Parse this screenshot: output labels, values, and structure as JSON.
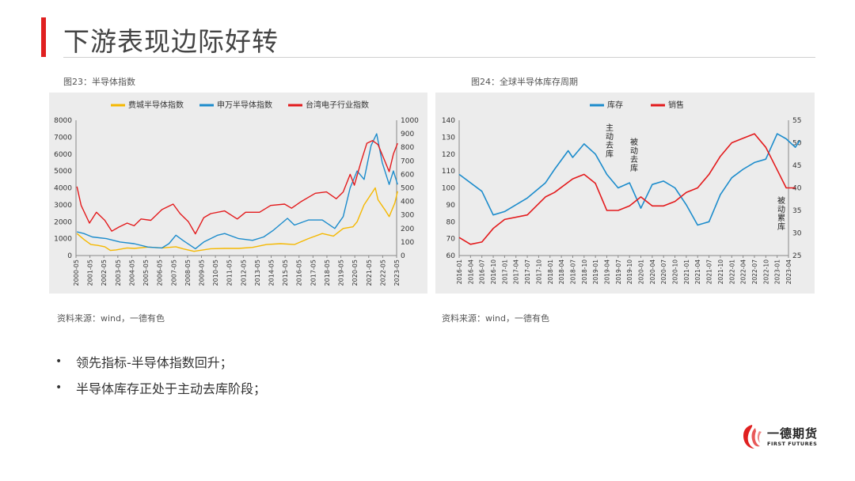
{
  "page": {
    "title": "下游表现边际好转",
    "bullets": [
      "领先指标-半导体指数回升；",
      "半导体库存正处于主动去库阶段；"
    ],
    "logo": {
      "name": "一德期货",
      "sub": "FIRST FUTURES"
    }
  },
  "figures": [
    {
      "caption": "图23：半导体指数",
      "source": "资料来源：wind，一德有色"
    },
    {
      "caption": "图24：全球半导体库存周期",
      "source": "资料来源：wind，一德有色"
    }
  ],
  "colors": {
    "accent": "#e02020",
    "yellow": "#f5b800",
    "blue": "#1c8ccc",
    "red": "#e31a1c"
  },
  "chart_data": [
    {
      "type": "line",
      "legend_position": "top",
      "x_ticks": [
        "2000-05",
        "2001-05",
        "2002-05",
        "2003-05",
        "2004-05",
        "2005-05",
        "2006-05",
        "2007-05",
        "2008-05",
        "2009-05",
        "2010-05",
        "2011-05",
        "2012-05",
        "2013-05",
        "2014-05",
        "2015-05",
        "2016-05",
        "2017-05",
        "2018-05",
        "2019-05",
        "2020-05",
        "2021-05",
        "2022-05",
        "2023-05"
      ],
      "y_left": {
        "range": [
          0,
          8000
        ],
        "ticks": [
          "0",
          "1000",
          "2000",
          "3000",
          "4000",
          "5000",
          "6000",
          "7000",
          "8000"
        ]
      },
      "y_right": {
        "range": [
          0,
          1000
        ],
        "ticks": [
          "0",
          "100",
          "200",
          "300",
          "400",
          "500",
          "600",
          "700",
          "800",
          "900",
          "1000"
        ]
      },
      "series": [
        {
          "name": "费城半导体指数",
          "axis": "left",
          "color": "#f5b800",
          "x": [
            2000.4,
            2000.9,
            2001.4,
            2001.9,
            2002.4,
            2002.8,
            2003.2,
            2004.0,
            2004.5,
            2005.5,
            2006.5,
            2007.5,
            2008.0,
            2008.8,
            2009.2,
            2010.0,
            2011.0,
            2012.0,
            2013.0,
            2014.0,
            2015.0,
            2016.0,
            2017.0,
            2018.0,
            2018.8,
            2019.5,
            2020.2,
            2020.5,
            2021.0,
            2021.8,
            2022.0,
            2022.5,
            2022.8,
            2023.2,
            2023.4
          ],
          "values": [
            1300,
            950,
            650,
            600,
            520,
            300,
            330,
            450,
            420,
            500,
            450,
            520,
            400,
            250,
            300,
            400,
            420,
            420,
            480,
            650,
            700,
            650,
            1000,
            1300,
            1150,
            1600,
            1700,
            2000,
            3000,
            4000,
            3300,
            2700,
            2300,
            3100,
            3800
          ]
        },
        {
          "name": "申万半导体指数",
          "axis": "left",
          "color": "#1c8ccc",
          "x": [
            2000.4,
            2000.9,
            2001.5,
            2002.5,
            2003.5,
            2004.5,
            2005.5,
            2006.5,
            2007.0,
            2007.5,
            2008.0,
            2008.9,
            2009.5,
            2010.5,
            2011.0,
            2012.0,
            2013.0,
            2013.8,
            2014.5,
            2015.5,
            2016.0,
            2017.0,
            2018.0,
            2018.9,
            2019.5,
            2020.0,
            2020.5,
            2021.0,
            2021.5,
            2021.9,
            2022.3,
            2022.8,
            2023.1,
            2023.4
          ],
          "values": [
            1400,
            1300,
            1100,
            1000,
            800,
            700,
            500,
            450,
            700,
            1200,
            900,
            400,
            800,
            1200,
            1300,
            1000,
            900,
            1100,
            1500,
            2200,
            1800,
            2100,
            2100,
            1600,
            2300,
            4000,
            5000,
            4500,
            6500,
            7200,
            5500,
            4200,
            5000,
            4200
          ]
        },
        {
          "name": "台湾电子行业指数",
          "axis": "right",
          "color": "#e31a1c",
          "x": [
            2000.4,
            2000.7,
            2001.3,
            2001.8,
            2002.4,
            2002.9,
            2003.4,
            2004.0,
            2004.5,
            2005.0,
            2005.7,
            2006.5,
            2007.3,
            2007.8,
            2008.4,
            2008.9,
            2009.5,
            2010.0,
            2011.0,
            2011.9,
            2012.5,
            2013.5,
            2014.3,
            2015.3,
            2015.8,
            2016.5,
            2017.5,
            2018.3,
            2019.0,
            2019.5,
            2020.0,
            2020.3,
            2020.8,
            2021.2,
            2021.6,
            2022.0,
            2022.4,
            2022.8,
            2023.1,
            2023.4
          ],
          "values": [
            510,
            370,
            240,
            320,
            260,
            180,
            210,
            240,
            220,
            270,
            260,
            340,
            380,
            310,
            250,
            160,
            280,
            310,
            330,
            270,
            320,
            320,
            370,
            380,
            350,
            400,
            460,
            470,
            420,
            470,
            600,
            520,
            700,
            830,
            850,
            820,
            720,
            620,
            750,
            830
          ]
        }
      ]
    },
    {
      "type": "line",
      "legend_position": "top",
      "x_ticks": [
        "2016-01",
        "2016-04",
        "2016-07",
        "2016-10",
        "2017-01",
        "2017-04",
        "2017-07",
        "2017-10",
        "2018-01",
        "2018-04",
        "2018-07",
        "2018-10",
        "2019-01",
        "2019-04",
        "2019-07",
        "2019-10",
        "2020-01",
        "2020-04",
        "2020-07",
        "2020-10",
        "2021-01",
        "2021-04",
        "2021-07",
        "2021-10",
        "2022-01",
        "2022-04",
        "2022-07",
        "2022-10",
        "2023-01",
        "2023-04"
      ],
      "y_left": {
        "range": [
          60,
          140
        ],
        "ticks": [
          "60",
          "70",
          "80",
          "90",
          "100",
          "110",
          "120",
          "130",
          "140"
        ]
      },
      "y_right": {
        "range": [
          25,
          55
        ],
        "ticks": [
          "25",
          "30",
          "35",
          "40",
          "45",
          "50",
          "55"
        ]
      },
      "annotations": [
        "主动去库",
        "被动去库",
        "被动累库"
      ],
      "series": [
        {
          "name": "库存",
          "axis": "left",
          "color": "#1c8ccc",
          "x": [
            2016.0,
            2016.5,
            2016.75,
            2017.0,
            2017.5,
            2017.9,
            2018.1,
            2018.4,
            2018.5,
            2018.75,
            2019.0,
            2019.25,
            2019.5,
            2019.75,
            2020.0,
            2020.25,
            2020.5,
            2020.75,
            2021.0,
            2021.25,
            2021.5,
            2021.75,
            2022.0,
            2022.25,
            2022.5,
            2022.75,
            2023.0,
            2023.2,
            2023.4,
            2023.5
          ],
          "values": [
            108,
            98,
            84,
            86,
            94,
            103,
            111,
            122,
            118,
            126,
            120,
            108,
            100,
            103,
            88,
            102,
            104,
            100,
            90,
            78,
            80,
            96,
            106,
            111,
            115,
            117,
            132,
            129,
            124,
            128
          ]
        },
        {
          "name": "销售",
          "axis": "right",
          "color": "#e31a1c",
          "x": [
            2016.0,
            2016.25,
            2016.5,
            2016.75,
            2017.0,
            2017.5,
            2017.9,
            2018.1,
            2018.5,
            2018.75,
            2019.0,
            2019.25,
            2019.5,
            2019.75,
            2020.0,
            2020.25,
            2020.5,
            2020.75,
            2021.0,
            2021.25,
            2021.5,
            2021.75,
            2022.0,
            2022.25,
            2022.5,
            2022.75,
            2023.0,
            2023.2,
            2023.4
          ],
          "values": [
            29,
            27.5,
            28,
            31,
            33,
            34,
            38,
            39,
            42,
            43,
            41,
            35,
            35,
            36,
            38,
            36,
            36,
            37,
            39,
            40,
            43,
            47,
            50,
            51,
            52,
            49,
            44,
            40,
            40
          ]
        }
      ]
    }
  ]
}
